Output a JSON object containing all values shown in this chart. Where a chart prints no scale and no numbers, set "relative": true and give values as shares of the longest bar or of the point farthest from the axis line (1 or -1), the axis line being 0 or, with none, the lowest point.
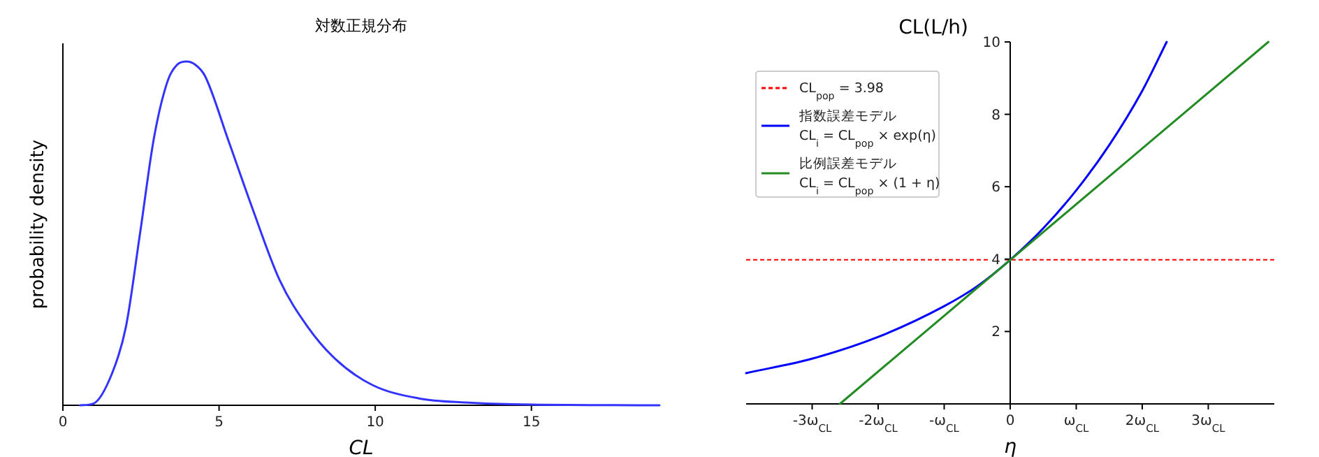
{
  "chart_data": [
    {
      "type": "line",
      "title": "対数正規分布",
      "xlabel": "CL",
      "ylabel": "probability density",
      "relative": true,
      "tick_labels": "x",
      "xlim": [
        0,
        19.1
      ],
      "xticks": [
        0,
        5,
        10,
        15
      ],
      "series": [
        {
          "color": "#3333ff",
          "x": [
            0.55,
            0.98,
            1.58,
            2.02,
            2.47,
            2.92,
            3.36,
            3.65,
            3.96,
            4.25,
            4.55,
            5.3,
            6.04,
            6.94,
            7.83,
            8.72,
            9.91,
            11.4,
            12.9,
            14.4,
            19.1
          ],
          "values": [
            0,
            0.005,
            0.094,
            0.229,
            0.5,
            0.78,
            0.945,
            0.99,
            1,
            0.99,
            0.958,
            0.77,
            0.58,
            0.364,
            0.229,
            0.135,
            0.059,
            0.02,
            0.008,
            0.003,
            0
          ]
        }
      ]
    },
    {
      "type": "line",
      "xlabel": "η",
      "ylabel": "CL(L/h)",
      "xlim": [
        -4,
        4
      ],
      "ylim": [
        0,
        10
      ],
      "legend": "top left",
      "xticks": [
        {
          "value": -3,
          "label": "-3ω$_{CL}$"
        },
        {
          "value": -2,
          "label": "-2ω$_{CL}$"
        },
        {
          "value": -1,
          "label": "-ω$_{CL}$"
        },
        0,
        {
          "value": 1,
          "label": "ω$_{CL}$"
        },
        {
          "value": 2,
          "label": "2ω$_{CL}$"
        },
        {
          "value": 3,
          "label": "3ω$_{CL}$"
        }
      ],
      "yticks": [
        2,
        4,
        6,
        8,
        10
      ],
      "ref_lines": [
        {
          "axis": "y",
          "value": 3.98,
          "label": "CL$_{pop}$ = 3.98",
          "color": "#ff0000",
          "line_style": "dashed"
        }
      ],
      "series": [
        {
          "name": "指数誤差モデル\nCL$_{i}$ = CL$_{pop}$ × exp(η)",
          "color": "#0000ff",
          "x": [
            -4,
            -3,
            -2,
            -1,
            -0.5,
            0,
            0.5,
            1,
            1.5,
            2,
            2.37
          ],
          "values": [
            0.85,
            1.25,
            1.85,
            2.7,
            3.25,
            3.98,
            4.85,
            5.9,
            7.15,
            8.65,
            10
          ]
        },
        {
          "name": "比例誤差モデル\nCL$_{i}$ = CL$_{pop}$ × (1 + η)",
          "color": "#228b22",
          "x": [
            -2.58,
            3.91
          ],
          "values": [
            0,
            10
          ]
        }
      ]
    }
  ]
}
